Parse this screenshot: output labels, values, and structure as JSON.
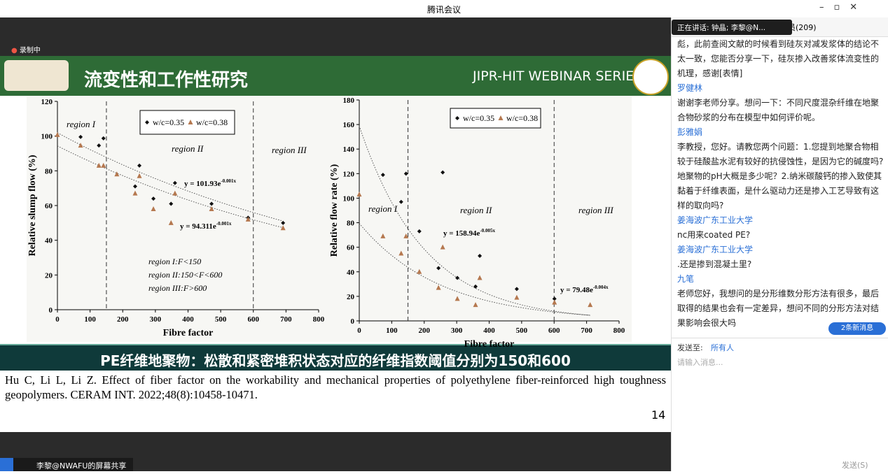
{
  "window": {
    "title": "腾讯会议",
    "recording": "录制中",
    "share_label": "李黎@NWAFU的屏幕共享"
  },
  "slide": {
    "title": "流变性和工作性研究",
    "series_name": "JIPR-HIT WEBINAR SERIES",
    "caption": "PE纤维地聚物：松散和紧密堆积状态对应的纤维指数阈值分别为150和600",
    "reference": "Hu C, Li L, Li Z. Effect of fiber factor on the workability and mechanical properties of polyethylene fiber-reinforced high toughness geopolymers. CERAM INT. 2022;48(8):10458-10471.",
    "page_number": "14",
    "charts": [
      {
        "type": "scatter",
        "x_label": "Fibre factor",
        "y_label": "Relative slump flow (%)",
        "xlim": [
          0,
          800
        ],
        "xticks": [
          0,
          100,
          200,
          300,
          400,
          500,
          600,
          700,
          800
        ],
        "ylim": [
          0,
          120
        ],
        "yticks": [
          0,
          20,
          40,
          60,
          80,
          100,
          120
        ],
        "thresholds": [
          150,
          600
        ],
        "series": [
          {
            "name": "w/c=0.35",
            "color": "#111111",
            "marker": "diamond",
            "x": [
              71,
              127,
              141,
              251,
              238,
              294,
              360,
              348,
              472,
              584,
              691
            ],
            "y": [
              99.5,
              94.6,
              98.7,
              83,
              71,
              64,
              73,
              61,
              61,
              53,
              50
            ]
          },
          {
            "name": "w/c=0.38",
            "color": "#b5784f",
            "marker": "triangle",
            "x": [
              0,
              71,
              127,
              141,
              182,
              238,
              251,
              294,
              348,
              360,
              472,
              584,
              691
            ],
            "y": [
              100.7,
              94.6,
              83,
              83,
              78,
              67,
              77,
              58,
              50,
              67,
              58,
              52,
              47
            ]
          }
        ],
        "fits": [
          {
            "a": 101.93,
            "b": -0.001,
            "text": "y = 101.93e",
            "exp": "-0.001x"
          },
          {
            "a": 94.311,
            "b": -0.001,
            "text": "y = 94.311e",
            "exp": "-0.001x"
          }
        ],
        "regions": [
          "region I",
          "region II",
          "region III"
        ],
        "notes": [
          "region I:F<150",
          "region II:150<F<600",
          "region III:F>600"
        ]
      },
      {
        "type": "scatter",
        "x_label": "Fibre factor",
        "y_label": "Relative flow rate (%)",
        "xlim": [
          0,
          800
        ],
        "xticks": [
          0,
          100,
          200,
          300,
          400,
          500,
          600,
          700,
          800
        ],
        "ylim": [
          0,
          180
        ],
        "yticks": [
          0,
          20,
          40,
          60,
          80,
          100,
          120,
          140,
          160,
          180
        ],
        "thresholds": [
          150,
          600
        ],
        "series": [
          {
            "name": "w/c=0.35",
            "color": "#111111",
            "marker": "diamond",
            "x": [
              73,
              129,
              144,
              185,
              244,
              257,
              302,
              358,
              371,
              485,
              601
            ],
            "y": [
              119,
              97,
              120,
              73,
              43,
              121,
              35,
              28,
              53,
              26,
              18
            ]
          },
          {
            "name": "w/c=0.38",
            "color": "#b5784f",
            "marker": "triangle",
            "x": [
              0,
              73,
              129,
              144,
              185,
              244,
              257,
              302,
              358,
              371,
              485,
              601,
              711
            ],
            "y": [
              103,
              69,
              55,
              69,
              40,
              27,
              60,
              18,
              13,
              35,
              19,
              15,
              13
            ]
          }
        ],
        "fits": [
          {
            "a": 158.94,
            "b": -0.005,
            "text": "y = 158.94e",
            "exp": "-0.005x"
          },
          {
            "a": 79.48,
            "b": -0.004,
            "text": "y = 79.48e",
            "exp": "-0.004x"
          }
        ],
        "regions": [
          "region I",
          "region II",
          "region III"
        ]
      }
    ]
  },
  "chat": {
    "tab": "员(209)",
    "speaking": "正在讲话: 钟晶; 李黎@N...",
    "messages": [
      {
        "text": "彪，此前查阅文献的时候看到硅灰对减发浆体的结论不太一致，您能否分享一下，硅灰掺入改善浆体流变性的机理，感谢[表情]"
      },
      {
        "name": "罗健林",
        "text": "谢谢李老师分享。想问一下：不同尺度混杂纤维在地聚合物砂浆的分布在模型中如何评价呢。"
      },
      {
        "name": "彭雅娟",
        "text": "李教授，您好。请教您两个问题：1.您提到地聚合物相较于硅酸盐水泥有较好的抗侵蚀性，是因为它的碱度吗?地聚物的pH大概是多少呢？2.纳米碳酸钙的掺入致使其黏着于纤维表面，是什么驱动力还是掺入工艺导致有这样的取向吗?"
      },
      {
        "name": "姜海波广东工业大学",
        "text": "nc用来coated PE?"
      },
      {
        "name": "姜海波广东工业大学",
        "text": ".还是掺到混凝土里?"
      },
      {
        "name": "九笔",
        "text": "老师您好，我想问的是分形维数分形方法有很多，最后取得的结果也会有一定差异，想问不同的分形方法对结果影响会很大吗"
      }
    ],
    "new_messages": "2条新消息",
    "send_to_label": "发送至:",
    "send_to": "所有人",
    "placeholder": "请输入消息...",
    "send": "发送(S)"
  }
}
